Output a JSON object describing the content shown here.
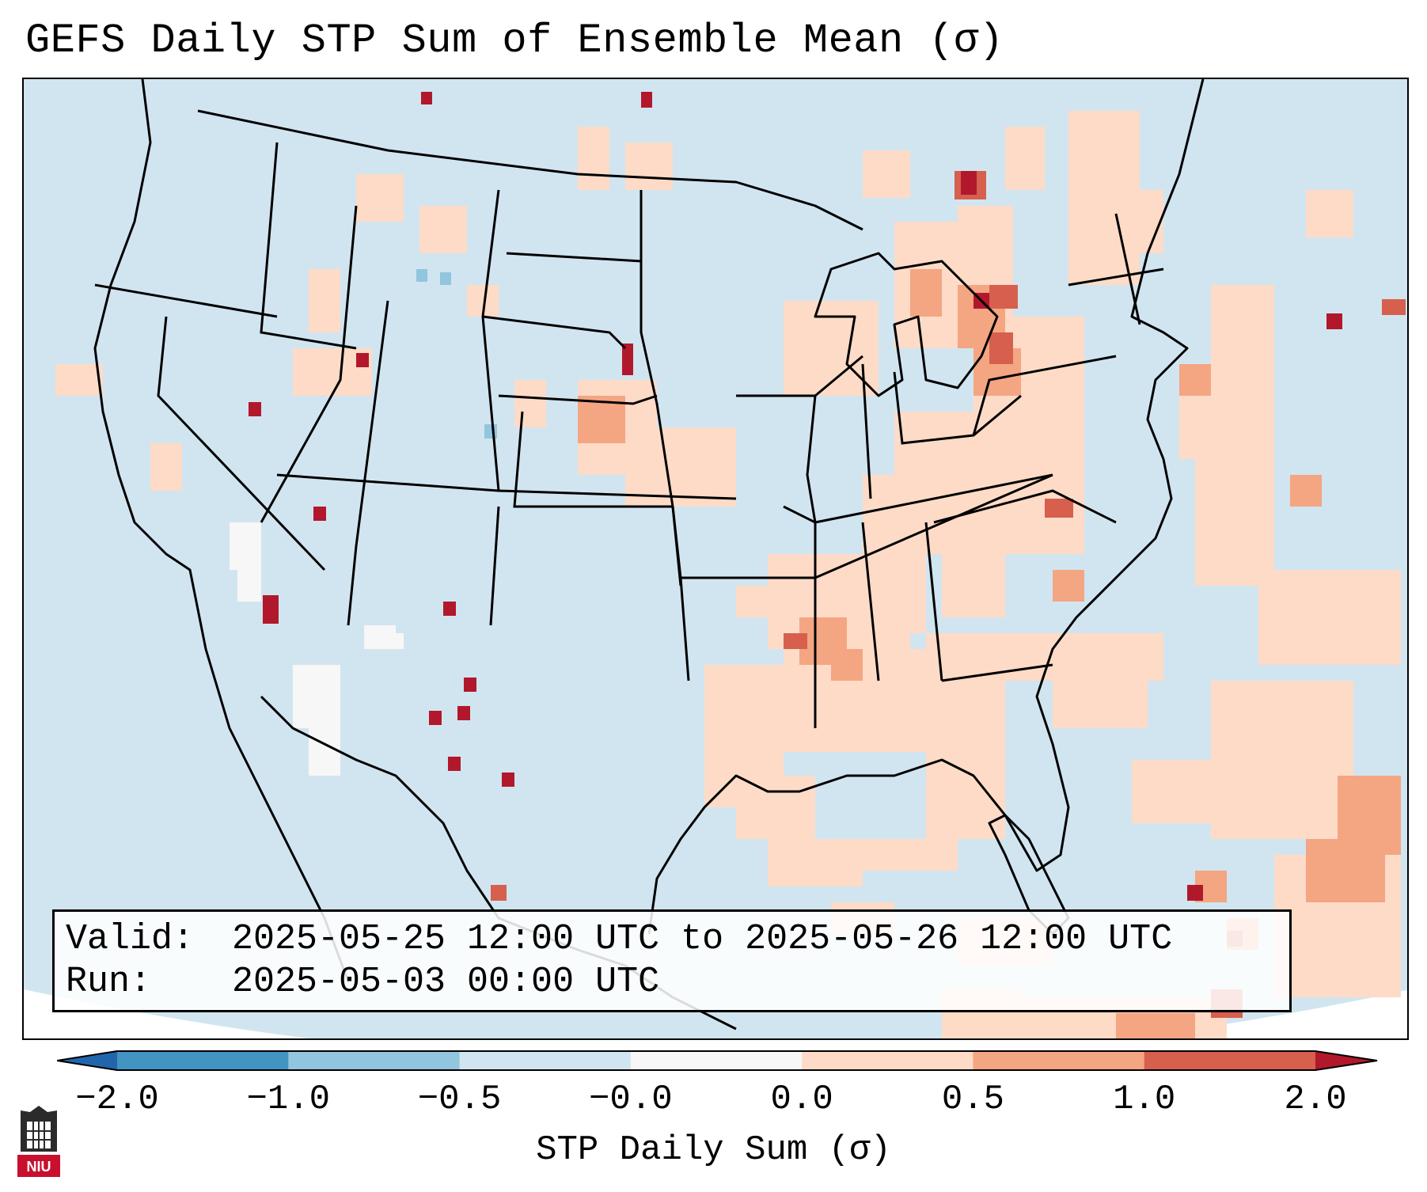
{
  "title": "GEFS Daily STP Sum of Ensemble Mean (σ)",
  "valid_label": "Valid:",
  "valid_value": "2025-05-25 12:00 UTC to 2025-05-26 12:00 UTC",
  "run_label": "Run:",
  "run_value": "2025-05-03 00:00 UTC",
  "colorbar": {
    "label": "STP Daily Sum (σ)",
    "ticks": [
      "−2.0",
      "−1.0",
      "−0.5",
      "−0.0",
      "0.0",
      "0.5",
      "1.0",
      "2.0"
    ],
    "colors": [
      "#4393c3",
      "#92c5de",
      "#d1e5f0",
      "#f7f7f7",
      "#fddbc7",
      "#f4a582",
      "#d6604d"
    ],
    "under_color": "#2166ac",
    "over_color": "#b2182b"
  },
  "map": {
    "background_color": "#d1e5f0",
    "land_line_color": "#000000",
    "region": "Continental United States, southern Canada, northern Mexico"
  },
  "logo_text": "NIU"
}
